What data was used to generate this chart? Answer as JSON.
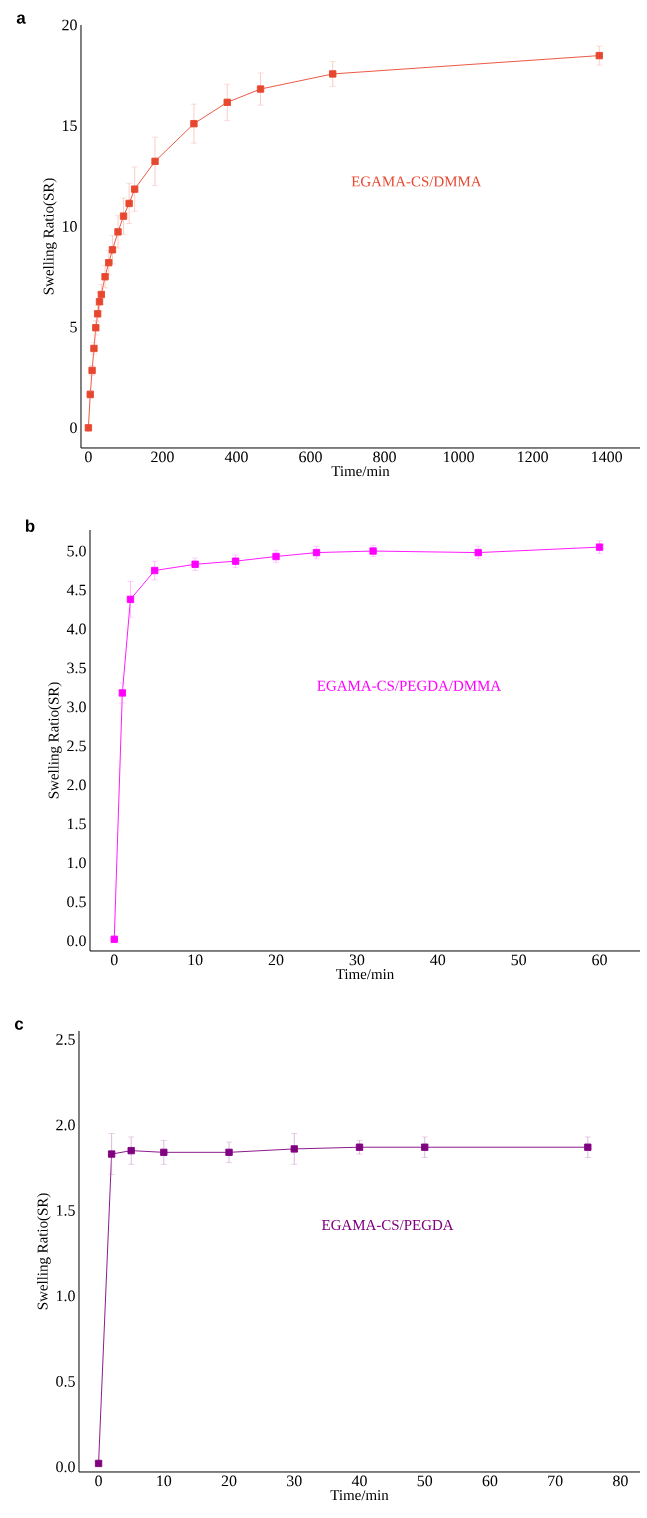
{
  "chart_data": [
    {
      "type": "line",
      "title": "a",
      "xlabel": "Time/min",
      "ylabel": "Swelling Ratio(SR)",
      "marker": "square",
      "xlim": [
        -20,
        1490
      ],
      "ylim": [
        -1,
        20
      ],
      "xticks": [
        0,
        200,
        400,
        600,
        800,
        1000,
        1200,
        1400
      ],
      "yticks": [
        0,
        5,
        10,
        15,
        20
      ],
      "x": [
        0,
        5,
        10,
        15,
        20,
        25,
        30,
        35,
        45,
        55,
        65,
        80,
        95,
        110,
        125,
        180,
        285,
        375,
        465,
        660,
        1380
      ],
      "series": [
        {
          "name": "EGAMA-CS/DMMA",
          "color": "#e8472f",
          "values": [
            0,
            1.66,
            2.85,
            3.94,
            4.97,
            5.66,
            6.26,
            6.62,
            7.5,
            8.2,
            8.84,
            9.73,
            10.51,
            11.14,
            11.85,
            13.23,
            15.1,
            16.16,
            16.82,
            17.57,
            18.48
          ],
          "errors": [
            null,
            0.2,
            0.25,
            0.3,
            0.35,
            0.4,
            0.45,
            0.5,
            0.55,
            0.6,
            0.7,
            0.8,
            0.9,
            1.0,
            1.1,
            1.2,
            0.97,
            0.9,
            0.8,
            0.62,
            0.47
          ]
        }
      ]
    },
    {
      "type": "line",
      "title": "b",
      "xlabel": "Time/min",
      "ylabel": "Swelling Ratio(SR)",
      "marker": "square",
      "xlim": [
        -3,
        65
      ],
      "ylim": [
        -0.13,
        5.27
      ],
      "xticks": [
        0,
        10,
        20,
        30,
        40,
        50,
        60
      ],
      "yticks": [
        {
          "value": 0,
          "label": "0.0"
        },
        0.5,
        {
          "value": 1,
          "label": "1.0"
        },
        1.5,
        {
          "value": 2,
          "label": "2.0"
        },
        2.5,
        {
          "value": 3,
          "label": "3.0"
        },
        3.5,
        {
          "value": 4,
          "label": "4.0"
        },
        4.5,
        {
          "value": 5,
          "label": "5.0"
        }
      ],
      "x": [
        0,
        1,
        2,
        5,
        10,
        15,
        20,
        25,
        32,
        45,
        60
      ],
      "series": [
        {
          "name": "EGAMA-CS/PEGDA/DMMA",
          "color": "#ff00ff",
          "values": [
            0.02,
            3.18,
            4.38,
            4.75,
            4.83,
            4.87,
            4.93,
            4.98,
            5.0,
            4.98,
            5.05
          ],
          "errors": [
            null,
            0.13,
            0.23,
            0.12,
            0.08,
            0.08,
            0.08,
            0.08,
            0.07,
            0.08,
            0.08
          ]
        }
      ]
    },
    {
      "type": "line",
      "title": "c",
      "xlabel": "Time/min",
      "ylabel": "Swelling Ratio(SR)",
      "marker": "square",
      "xlim": [
        -3,
        83
      ],
      "ylim": [
        -0.03,
        2.55
      ],
      "xticks": [
        0,
        10,
        20,
        30,
        40,
        50,
        60,
        70,
        80
      ],
      "yticks": [
        {
          "value": 0,
          "label": "0.0"
        },
        0.5,
        {
          "value": 1,
          "label": "1.0"
        },
        1.5,
        {
          "value": 2,
          "label": "2.0"
        },
        2.5
      ],
      "x": [
        0,
        2,
        5,
        10,
        20,
        30,
        40,
        50,
        75
      ],
      "series": [
        {
          "name": "EGAMA-CS/PEGDA",
          "color": "#800080",
          "values": [
            0.02,
            1.83,
            1.85,
            1.84,
            1.84,
            1.86,
            1.87,
            1.87,
            1.87
          ],
          "errors": [
            null,
            0.12,
            0.08,
            0.07,
            0.06,
            0.09,
            0.04,
            0.06,
            0.06
          ]
        }
      ]
    }
  ]
}
